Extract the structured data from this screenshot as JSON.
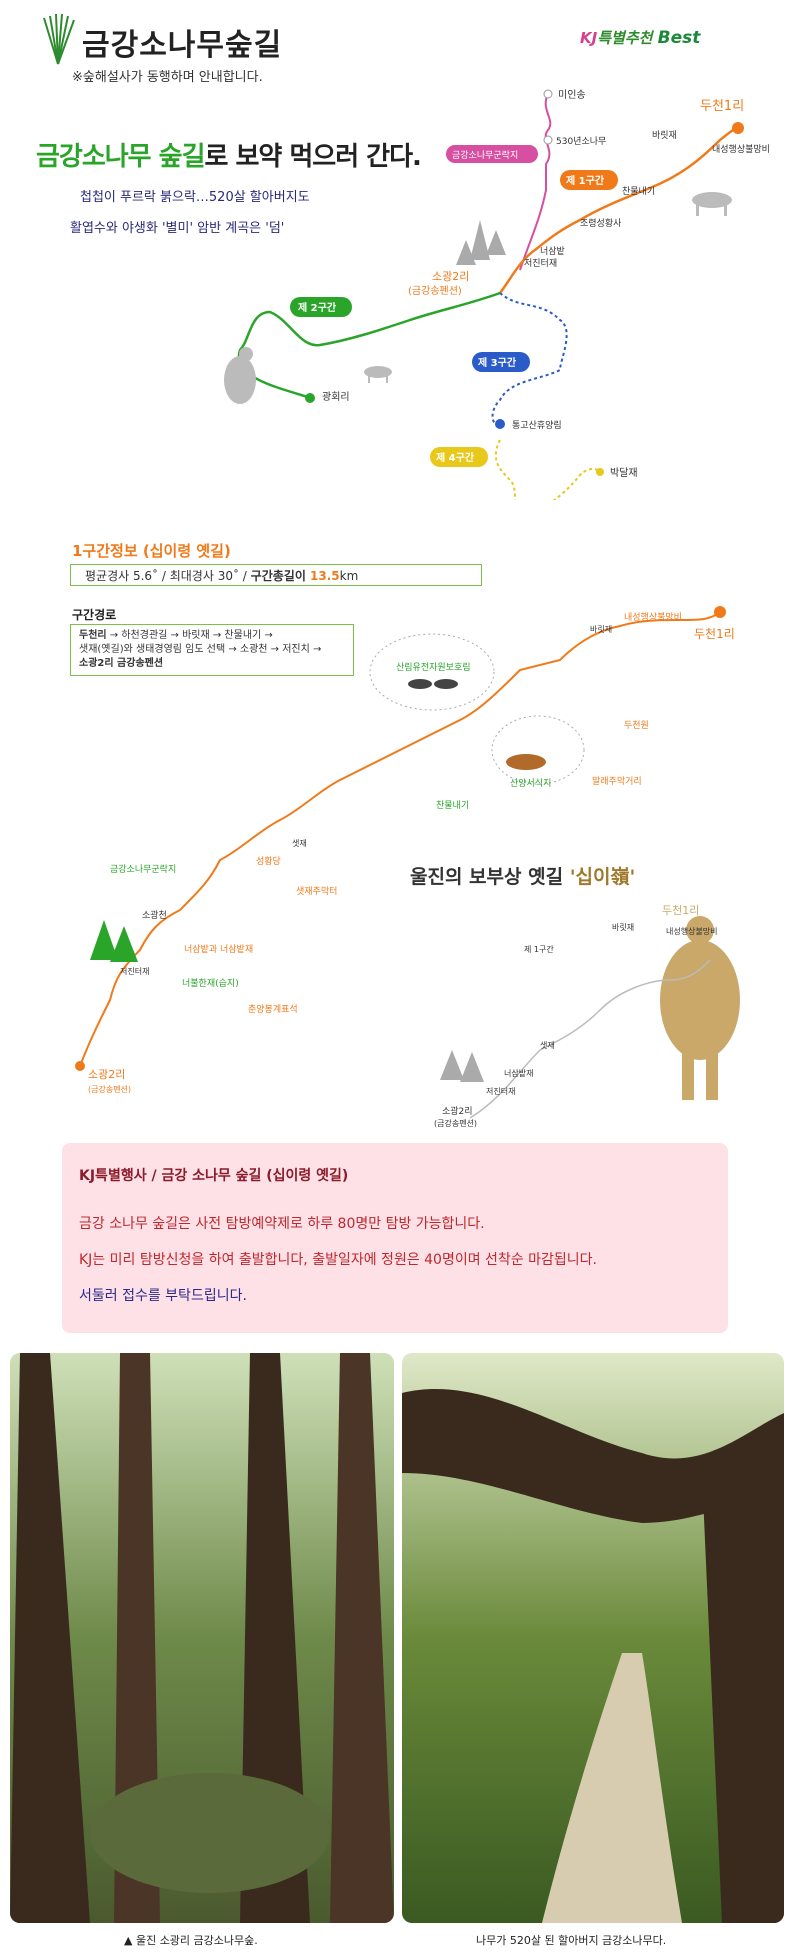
{
  "header": {
    "title": "금강소나무숲길",
    "note": "※숲해설사가 동행하며 안내합니다.",
    "badge_kj": "KJ",
    "badge_mid": "특별추천",
    "badge_best": "Best"
  },
  "headline": {
    "green": "금강소나무 숲길",
    "rest": "로 보약 먹으러 간다.",
    "line1": "첩첩이 푸르락 붉으락…520살 할아버지도",
    "line2": "활엽수와 야생화 '별미' 암반 계곡은 '덤'"
  },
  "map1": {
    "places": [
      "미인송",
      "530년소나무",
      "두천1리",
      "바릿재",
      "내성행상불망비",
      "금강소나무군락지",
      "제 1구간",
      "찬물내기",
      "조령성황사",
      "너삼밭",
      "저진터재",
      "소광2리",
      "(금강송펜션)",
      "제 2구간",
      "광회리",
      "제 3구간",
      "통고산휴양림",
      "제 4구간",
      "박달재"
    ]
  },
  "section1": {
    "title": "1구간정보 (십이령 옛길)",
    "stats_pre": "평균경사 5.6˚ / 최대경사 30˚ / ",
    "stats_total_label": "구간총길이 ",
    "stats_total_value": "13.5",
    "stats_unit": "km",
    "route_title": "구간경로",
    "route_l1_b": "두천리",
    "route_l1": " → 하천경관길 → 바릿재 → 찬물내기 →",
    "route_l2": "샛재(옛길)와 생태경영림 임도 선택 → 소광천 → 저진치 →",
    "route_l3": "소광2리 금강송펜션"
  },
  "map2": {
    "labels": [
      "내성행상불망비",
      "두천1리",
      "바릿재",
      "두천원",
      "말래주막거리",
      "산림유전자원보호림",
      "산양서식지",
      "찬물내기",
      "샛재",
      "성황당",
      "샛재주막터",
      "금강소나무군락지",
      "소광천",
      "너삼밭과 너삼밭재",
      "저진터재",
      "너불한재(습지)",
      "춘양봉계표석",
      "소광2리",
      "(금강송펜션)"
    ]
  },
  "walk": {
    "title_pre": "울진의 보부상 옛길 ",
    "title_brown": "'십이嶺'",
    "mini_labels": [
      "두천1리",
      "내성행상불망비",
      "바릿재",
      "제 1구간",
      "샛재",
      "너삼밭재",
      "저진터재",
      "소광2리",
      "(금강송펜션)"
    ]
  },
  "notice": {
    "title": "KJ특별행사 / 금강 소나무 숲길 (십이령 옛길)",
    "line1": "금강 소나무 숲길은 사전 탐방예약제로 하루 80명만 탐방 가능합니다.",
    "line2": "KJ는 미리 탐방신청을 하여 출발합니다,  출발일자에 정원은 40명이며 선착순 마감됩니다.",
    "line3": "서둘러 접수를 부탁드립니다."
  },
  "captions": {
    "left": "▲ 울진 소광리 금강소나무숲.",
    "right": "나무가 520살 된 할아버지 금강소나무다."
  },
  "colors": {
    "orange": "#f07a1a",
    "green": "#2aa52a",
    "blue": "#2a5bc8",
    "yellow": "#e8c81a",
    "pink": "#d64fa0",
    "notice_bg": "#fde1e6"
  }
}
